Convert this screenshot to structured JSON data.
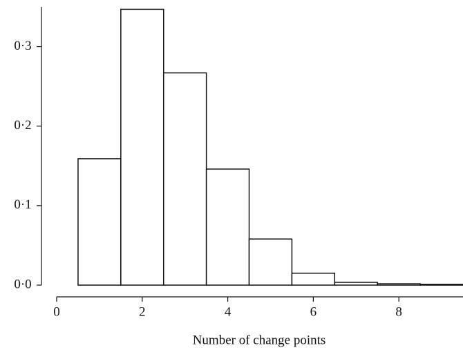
{
  "chart_data": {
    "type": "histogram",
    "x_label": "Number of change points",
    "bins": [
      0.5,
      1.5,
      2.5,
      3.5,
      4.5,
      5.5,
      6.5,
      7.5,
      8.5,
      9.5
    ],
    "values": [
      0.159,
      0.347,
      0.267,
      0.146,
      0.058,
      0.015,
      0.0035,
      0.0017,
      0.001
    ],
    "color": "#ffffff",
    "xlim": [
      0,
      9.5
    ],
    "xticks": [
      0,
      2,
      4,
      6,
      8
    ],
    "ylim": [
      0,
      0.35
    ],
    "yticks": [
      {
        "value": 0,
        "label": "0·0"
      },
      {
        "value": 0.1,
        "label": "0·1"
      },
      {
        "value": 0.2,
        "label": "0·2"
      },
      {
        "value": 0.3,
        "label": "0·3"
      }
    ],
    "grid": false
  }
}
